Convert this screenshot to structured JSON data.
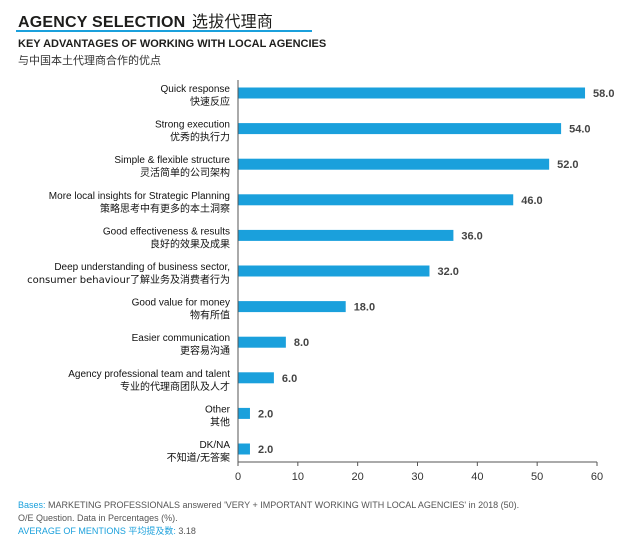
{
  "header": {
    "title_en": "AGENCY SELECTION",
    "title_zh": "选拔代理商",
    "subtitle_en": "KEY ADVANTAGES OF WORKING WITH LOCAL AGENCIES",
    "subtitle_zh": "与中国本土代理商合作的优点"
  },
  "colors": {
    "accent": "#1aa0dc",
    "bar": "#1aa0dc"
  },
  "chart_data": {
    "type": "bar",
    "orientation": "horizontal",
    "categories": [
      [
        "Quick response",
        "快速反应"
      ],
      [
        "Strong execution",
        "优秀的执行力"
      ],
      [
        "Simple & flexible structure",
        "灵活简单的公司架构"
      ],
      [
        "More local insights for Strategic Planning",
        "策略思考中有更多的本土洞察"
      ],
      [
        "Good effectiveness & results",
        "良好的效果及成果"
      ],
      [
        "Deep understanding of business sector,",
        "consumer behaviour了解业务及消费者行为"
      ],
      [
        "Good value for money",
        "物有所值"
      ],
      [
        "Easier communication",
        "更容易沟通"
      ],
      [
        "Agency professional team  and talent",
        "专业的代理商团队及人才"
      ],
      [
        "Other",
        "其他"
      ],
      [
        "DK/NA",
        "不知道/无答案"
      ]
    ],
    "values": [
      58.0,
      54.0,
      52.0,
      46.0,
      36.0,
      32.0,
      18.0,
      8.0,
      6.0,
      2.0,
      2.0
    ],
    "value_labels": [
      "58.0",
      "54.0",
      "52.0",
      "46.0",
      "36.0",
      "32.0",
      "18.0",
      "8.0",
      "6.0",
      "2.0",
      "2.0"
    ],
    "xlim": [
      0,
      60
    ],
    "xticks": [
      0,
      10,
      20,
      30,
      40,
      50,
      60
    ],
    "xtick_labels": [
      "0",
      "10",
      "20",
      "30",
      "40",
      "50",
      "60"
    ],
    "grid": false,
    "legend": "none"
  },
  "notes": {
    "bases_label": "Bases:",
    "bases_text": " MARKETING PROFESSIONALS answered 'VERY + IMPORTANT WORKING WITH LOCAL AGENCIES' in 2018 (50).",
    "question_text": "O/E Question. Data in Percentages (%).",
    "average_label": "AVERAGE OF MENTIONS 平均提及数:",
    "average_value": " 3.18"
  }
}
